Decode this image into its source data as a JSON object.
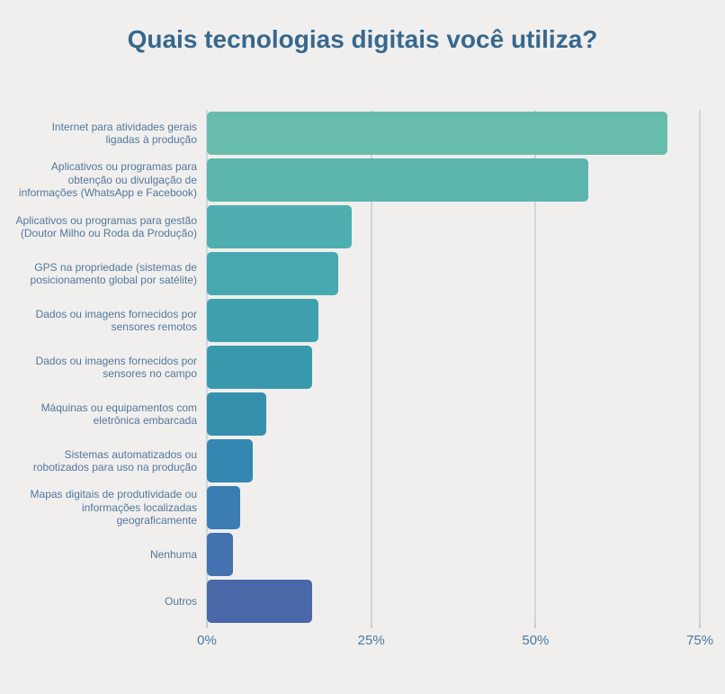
{
  "title": "Quais tecnologias digitais você utiliza?",
  "colors": {
    "background": "#f0efed",
    "title_text": "#37688e",
    "category_label_text": "#53779d",
    "tick_label_text": "#4d77a0",
    "gridline": "#ccd7e0"
  },
  "chart_data": {
    "type": "bar",
    "orientation": "horizontal",
    "title": "Quais tecnologias digitais você utiliza?",
    "unit": "%",
    "grid": true,
    "legend": false,
    "xlim": [
      0,
      78.8
    ],
    "x_ticks": [
      {
        "label": "0%",
        "value": 0
      },
      {
        "label": "25%",
        "value": 25
      },
      {
        "label": "50%",
        "value": 50
      },
      {
        "label": "75%",
        "value": 75
      }
    ],
    "categories": [
      "Internet para atividades gerais ligadas à produção",
      "Aplicativos ou programas para obtenção ou divulgação de informações (WhatsApp e Facebook)",
      "Aplicativos ou programas para gestão (Doutor Milho ou Roda da Produção)",
      "GPS na propriedade (sistemas de posicionamento global por satélite)",
      "Dados ou imagens fornecidos por sensores remotos",
      "Dados ou imagens fornecidos por sensores no campo",
      "Máquinas ou equipamentos com eletrônica embarcada",
      "Sistemas automatizados ou robotizados para uso na produção",
      "Mapas digitais de produtividade ou informações localizadas geograficamente",
      "Nenhuma",
      "Outros"
    ],
    "label_lines": [
      [
        "Internet para atividades gerais",
        "ligadas à produção"
      ],
      [
        "Aplicativos ou programas para",
        "obtenção ou divulgação de",
        "informações (WhatsApp e Facebook)"
      ],
      [
        "Aplicativos ou programas para gestão",
        "(Doutor Milho ou Roda da Produção)"
      ],
      [
        "GPS na propriedade (sistemas de",
        "posicionamento global por satélite)"
      ],
      [
        "Dados ou imagens fornecidos por",
        "sensores remotos"
      ],
      [
        "Dados ou imagens fornecidos por",
        "sensores no campo"
      ],
      [
        "Máquinas ou equipamentos com",
        "eletrônica embarcada"
      ],
      [
        "Sistemas automatizados ou",
        "robotizados para uso na produção"
      ],
      [
        "Mapas digitais de produtividade ou",
        "informações localizadas",
        "geograficamente"
      ],
      [
        "Nenhuma"
      ],
      [
        "Outros"
      ]
    ],
    "values": [
      70,
      58,
      22,
      20,
      17,
      16,
      9,
      7,
      5,
      4,
      16
    ],
    "bar_colors": [
      "#68bcab",
      "#5bb5ad",
      "#4fafb0",
      "#46a9b1",
      "#3fa1ae",
      "#3999ac",
      "#3590ae",
      "#3387b1",
      "#3a7db2",
      "#4272af",
      "#4a67a8"
    ]
  }
}
